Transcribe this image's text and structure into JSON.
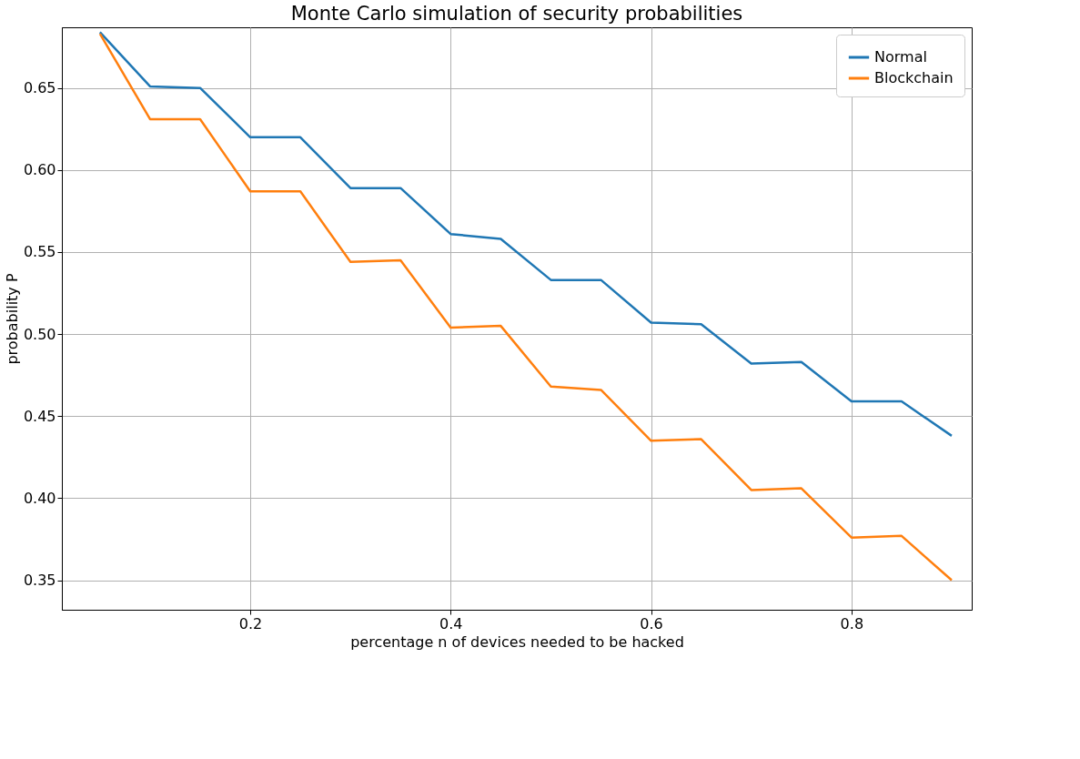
{
  "chart_data": {
    "type": "line",
    "title": "Monte Carlo simulation of security probabilities",
    "xlabel": "percentage n of devices needed to be hacked",
    "ylabel": "probability P",
    "x": [
      0.05,
      0.1,
      0.15,
      0.2,
      0.25,
      0.3,
      0.35,
      0.4,
      0.45,
      0.5,
      0.55,
      0.6,
      0.65,
      0.7,
      0.75,
      0.8,
      0.85,
      0.9
    ],
    "series": [
      {
        "name": "Normal",
        "color": "#1f77b4",
        "values": [
          0.684,
          0.651,
          0.65,
          0.62,
          0.62,
          0.589,
          0.589,
          0.561,
          0.558,
          0.533,
          0.533,
          0.507,
          0.506,
          0.482,
          0.483,
          0.459,
          0.459,
          0.438
        ]
      },
      {
        "name": "Blockchain",
        "color": "#ff7f0e",
        "values": [
          0.683,
          0.631,
          0.631,
          0.587,
          0.587,
          0.544,
          0.545,
          0.504,
          0.505,
          0.468,
          0.466,
          0.435,
          0.436,
          0.405,
          0.406,
          0.376,
          0.377,
          0.35
        ]
      }
    ],
    "xlim": [
      0.012,
      0.92
    ],
    "xticks": [
      0.2,
      0.4,
      0.6,
      0.8
    ],
    "ylim": [
      0.332,
      0.687
    ],
    "yticks": [
      {
        "value": 0.35,
        "label": "0.35"
      },
      {
        "value": 0.4,
        "label": "0.40"
      },
      {
        "value": 0.45,
        "label": "0.45"
      },
      {
        "value": 0.5,
        "label": "0.50"
      },
      {
        "value": 0.55,
        "label": "0.55"
      },
      {
        "value": 0.6,
        "label": "0.60"
      },
      {
        "value": 0.65,
        "label": "0.65"
      }
    ],
    "grid": true,
    "legend": "top right",
    "marker": "none",
    "line_style": "solid"
  }
}
